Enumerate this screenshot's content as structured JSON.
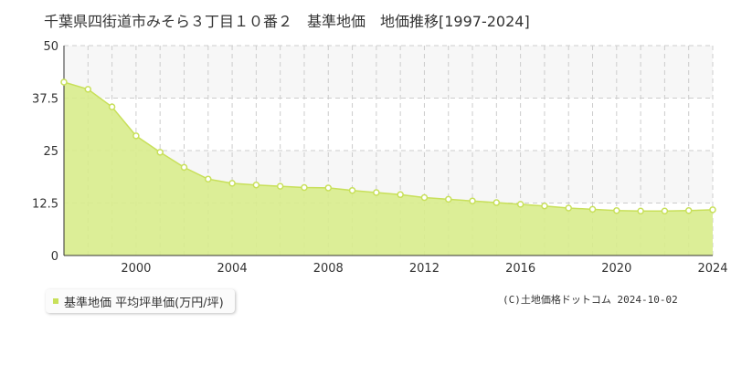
{
  "chart_data": {
    "type": "area",
    "title": "千葉県四街道市みそら３丁目１０番２　基準地価　地価推移[1997-2024]",
    "x": [
      1997,
      1998,
      1999,
      2000,
      2001,
      2002,
      2003,
      2004,
      2005,
      2006,
      2007,
      2008,
      2009,
      2010,
      2011,
      2012,
      2013,
      2014,
      2015,
      2016,
      2017,
      2018,
      2019,
      2020,
      2021,
      2022,
      2023,
      2024
    ],
    "series": [
      {
        "name": "基準地価 平均坪単価(万円/坪)",
        "values": [
          41.3,
          39.6,
          35.4,
          28.5,
          24.6,
          21.0,
          18.2,
          17.2,
          16.8,
          16.5,
          16.2,
          16.1,
          15.5,
          15.0,
          14.5,
          13.8,
          13.4,
          13.0,
          12.6,
          12.2,
          11.8,
          11.3,
          11.0,
          10.7,
          10.6,
          10.6,
          10.7,
          10.9
        ]
      }
    ],
    "xticks": [
      "2000",
      "2004",
      "2008",
      "2012",
      "2016",
      "2020",
      "2024"
    ],
    "yticks": [
      "0",
      "12.5",
      "25",
      "37.5",
      "50"
    ],
    "xlim": [
      1997,
      2024
    ],
    "ylim": [
      0,
      50
    ],
    "grid": true,
    "legend_position": "bottom-left",
    "colors": {
      "fill": "#d8ec8c",
      "line": "#c8e05a",
      "marker": "#c8e05a",
      "band": "#f7f7f7",
      "grid": "#cccccc"
    }
  },
  "credit": "(C)土地価格ドットコム 2024-10-02"
}
